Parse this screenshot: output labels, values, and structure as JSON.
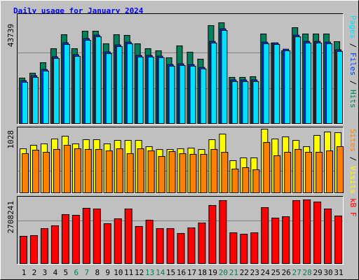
{
  "chart_data": {
    "type": "bar",
    "title": "Daily usage for January 2024",
    "title_color": "#0000ff",
    "background": "#c0c0c0",
    "categories": [
      "1",
      "2",
      "3",
      "4",
      "5",
      "6",
      "7",
      "8",
      "9",
      "10",
      "11",
      "12",
      "13",
      "14",
      "15",
      "16",
      "17",
      "18",
      "19",
      "20",
      "21",
      "22",
      "23",
      "24",
      "25",
      "26",
      "27",
      "28",
      "29",
      "30",
      "31"
    ],
    "category_colors": [
      "#000000",
      "#000000",
      "#000000",
      "#000000",
      "#000000",
      "#00805c",
      "#00805c",
      "#000000",
      "#000000",
      "#000000",
      "#000000",
      "#000000",
      "#00805c",
      "#00805c",
      "#000000",
      "#000000",
      "#000000",
      "#000000",
      "#000000",
      "#00805c",
      "#00805c",
      "#000000",
      "#000000",
      "#000000",
      "#000000",
      "#000000",
      "#00805c",
      "#00805c",
      "#000000",
      "#000000",
      "#000000"
    ],
    "legend_separator": " / ",
    "panels": [
      {
        "ylim": [
          0,
          47384
        ],
        "yticks": [
          43739
        ],
        "series": [
          {
            "name": "Hits",
            "color": "#00805c",
            "values": [
              19741,
              21866,
              26422,
              32496,
              38570,
              32496,
              40088,
              40088,
              34622,
              38570,
              38266,
              34622,
              32496,
              31585,
              28548,
              33711,
              30977,
              27940,
              42518,
              43739,
              20044,
              20044,
              20348,
              38874,
              34926,
              31585,
              41607,
              38874,
              38874,
              38874,
              35533
            ]
          },
          {
            "name": "Files",
            "color": "#0040ff",
            "values": [
              18618,
              20744,
              23478,
              28944,
              35018,
              29855,
              36840,
              38359,
              31070,
              34107,
              35322,
              29552,
              29552,
              29248,
              25603,
              25907,
              25603,
              24389,
              35626,
              41092,
              18922,
              18922,
              18922,
              35322,
              35018,
              32285,
              38359,
              35626,
              35626,
              35322,
              31981
            ]
          },
          {
            "name": "Pages",
            "color": "#00e0ff",
            "values": [
              17918,
              20044,
              22778,
              28244,
              34318,
              29155,
              36140,
              37659,
              30370,
              33407,
              34622,
              28852,
              28852,
              28548,
              24903,
              25207,
              24903,
              23689,
              34926,
              40392,
              18222,
              18222,
              18222,
              34622,
              34318,
              31585,
              37659,
              34926,
              34926,
              34622,
              31281
            ]
          }
        ]
      },
      {
        "ylim": [
          0,
          1051
        ],
        "yticks": [
          1028
        ],
        "series": [
          {
            "name": "Visits",
            "color": "#ffff00",
            "values": [
              712,
              768,
              791,
              870,
              915,
              791,
              859,
              859,
              791,
              847,
              847,
              847,
              746,
              700,
              700,
              712,
              723,
              700,
              859,
              949,
              520,
              565,
              565,
              1028,
              870,
              904,
              847,
              746,
              927,
              983,
              972
            ]
          },
          {
            "name": "Sites",
            "color": "#ff8000",
            "values": [
              633,
              689,
              655,
              701,
              768,
              712,
              701,
              701,
              678,
              712,
              633,
              712,
              678,
              588,
              667,
              633,
              622,
              622,
              701,
              655,
              384,
              407,
              373,
              814,
              599,
              655,
              701,
              655,
              655,
              678,
              746
            ]
          }
        ]
      },
      {
        "ylim": [
          0,
          2827300
        ],
        "yticks": [
          2708241
        ],
        "series": [
          {
            "name": "kB F",
            "color": "#ff0000",
            "values": [
              1160679,
              1190440,
              1488050,
              1607094,
              2083270,
              2053509,
              2351119,
              2321358,
              1696377,
              1904704,
              2321358,
              1577333,
              1845182,
              1488050,
              1488050,
              1279723,
              1517811,
              1726138,
              2470163,
              2678490,
              1309484,
              1249962,
              1309484,
              2380880,
              1934465,
              1993987,
              2678490,
              2708241,
              2618968,
              2321358,
              2023748
            ]
          }
        ]
      }
    ]
  }
}
